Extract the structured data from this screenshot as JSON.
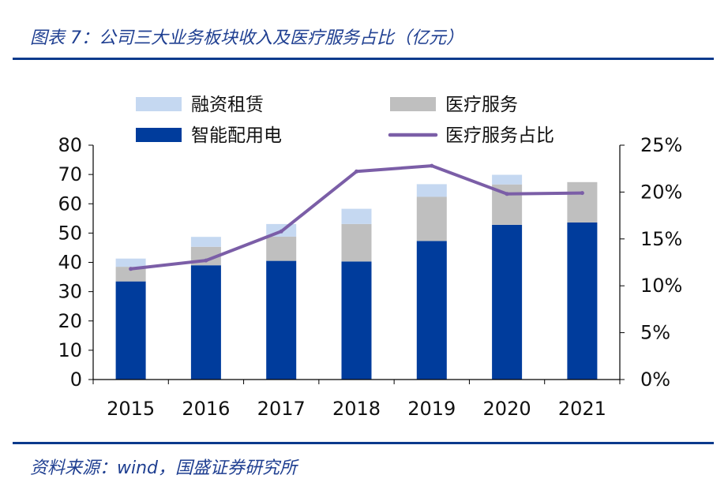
{
  "title": "图表 7：公司三大业务板块收入及医疗服务占比（亿元）",
  "source": "资料来源：wind，国盛证券研究所",
  "colors": {
    "smart_power": "#003c9c",
    "medical_service": "#bfbfbf",
    "finance_leasing": "#c5d8f1",
    "ratio_line": "#7b5ea7",
    "rule": "#0b3a8c",
    "title": "#1f3f91"
  },
  "chart_data": {
    "type": "bar",
    "stacked": true,
    "title": "公司三大业务板块收入及医疗服务占比（亿元）",
    "categories": [
      "2015",
      "2016",
      "2017",
      "2018",
      "2019",
      "2020",
      "2021"
    ],
    "series": [
      {
        "name": "智能配用电",
        "axis": "left",
        "values": [
          33.5,
          39,
          40.5,
          40.3,
          47.3,
          52.8,
          53.6
        ]
      },
      {
        "name": "医疗服务",
        "axis": "left",
        "values": [
          5,
          6.3,
          8.3,
          12.8,
          15.1,
          13.8,
          13.8
        ]
      },
      {
        "name": "融资租赁",
        "axis": "left",
        "values": [
          2.8,
          3.4,
          4.3,
          5.2,
          4.3,
          3.3,
          0
        ]
      },
      {
        "name": "医疗服务占比",
        "type": "line",
        "axis": "right",
        "values": [
          11.8,
          12.7,
          15.8,
          22.2,
          22.8,
          19.8,
          19.9
        ]
      }
    ],
    "legend": [
      "融资租赁",
      "医疗服务",
      "智能配用电",
      "医疗服务占比"
    ],
    "left_axis": {
      "min": 0,
      "max": 80,
      "ticks": [
        "0",
        "10",
        "20",
        "30",
        "40",
        "50",
        "60",
        "70",
        "80"
      ]
    },
    "right_axis": {
      "min": 0,
      "max": 25,
      "ticks": [
        "0%",
        "5%",
        "10%",
        "15%",
        "20%",
        "25%"
      ]
    },
    "xlabel": "",
    "ylabel": "",
    "legend_position": "top",
    "grid": false
  }
}
